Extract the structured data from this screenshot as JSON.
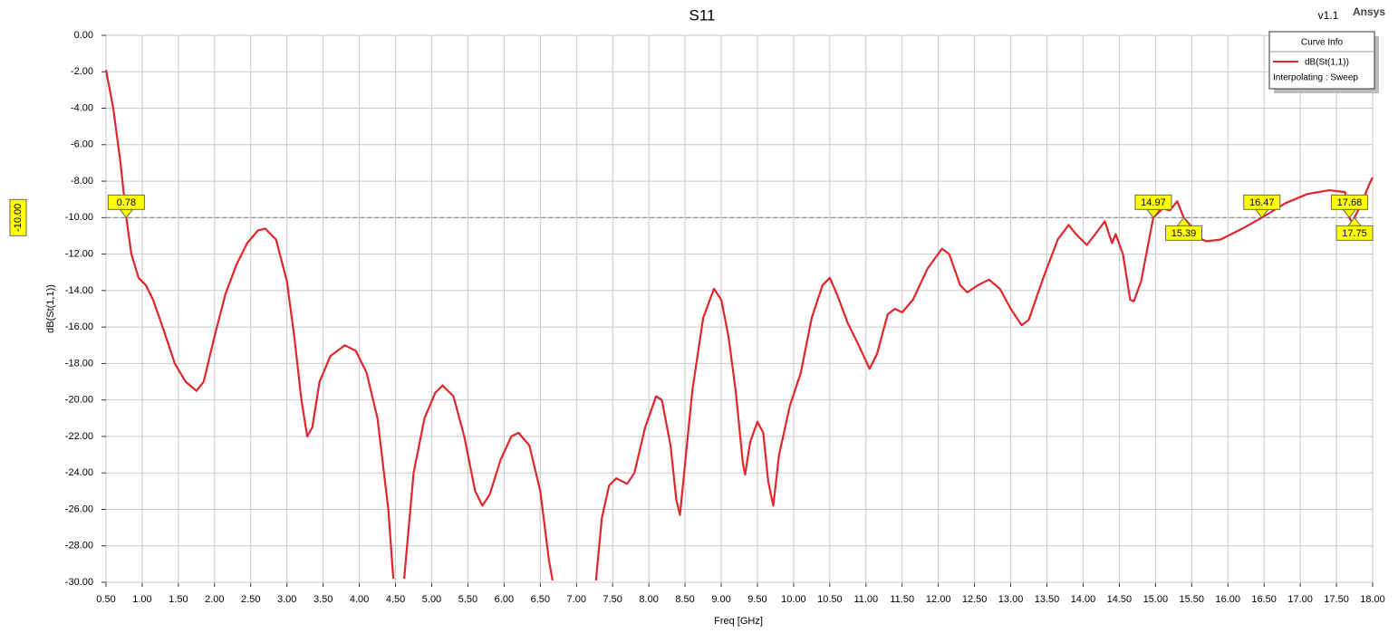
{
  "chart_data": {
    "type": "line",
    "title": "S11",
    "version": "v1.1",
    "brand": "Ansys",
    "xlabel": "Freq [GHz]",
    "ylabel": "dB(St(1,1))",
    "legend_title": "Curve Info",
    "legend_note": "Interpolating : Sweep",
    "legend": "top-right",
    "grid": true,
    "xlim": [
      0.5,
      18
    ],
    "ylim": [
      -30,
      0
    ],
    "xticks": [
      {
        "value": 0.5,
        "label": "0.50"
      },
      {
        "value": 1,
        "label": "1.00"
      },
      {
        "value": 1.5,
        "label": "1.50"
      },
      {
        "value": 2,
        "label": "2.00"
      },
      {
        "value": 2.5,
        "label": "2.50"
      },
      {
        "value": 3,
        "label": "3.00"
      },
      {
        "value": 3.5,
        "label": "3.50"
      },
      {
        "value": 4,
        "label": "4.00"
      },
      {
        "value": 4.5,
        "label": "4.50"
      },
      {
        "value": 5,
        "label": "5.00"
      },
      {
        "value": 5.5,
        "label": "5.50"
      },
      {
        "value": 6,
        "label": "6.00"
      },
      {
        "value": 6.5,
        "label": "6.50"
      },
      {
        "value": 7,
        "label": "7.00"
      },
      {
        "value": 7.5,
        "label": "7.50"
      },
      {
        "value": 8,
        "label": "8.00"
      },
      {
        "value": 8.5,
        "label": "8.50"
      },
      {
        "value": 9,
        "label": "9.00"
      },
      {
        "value": 9.5,
        "label": "9.50"
      },
      {
        "value": 10,
        "label": "10.00"
      },
      {
        "value": 10.5,
        "label": "10.50"
      },
      {
        "value": 11,
        "label": "11.00"
      },
      {
        "value": 11.5,
        "label": "11.50"
      },
      {
        "value": 12,
        "label": "12.00"
      },
      {
        "value": 12.5,
        "label": "12.50"
      },
      {
        "value": 13,
        "label": "13.00"
      },
      {
        "value": 13.5,
        "label": "13.50"
      },
      {
        "value": 14,
        "label": "14.00"
      },
      {
        "value": 14.5,
        "label": "14.50"
      },
      {
        "value": 15,
        "label": "15.00"
      },
      {
        "value": 15.5,
        "label": "15.50"
      },
      {
        "value": 16,
        "label": "16.00"
      },
      {
        "value": 16.5,
        "label": "16.50"
      },
      {
        "value": 17,
        "label": "17.00"
      },
      {
        "value": 17.5,
        "label": "17.50"
      },
      {
        "value": 18,
        "label": "18.00"
      }
    ],
    "yticks": [
      {
        "value": 0,
        "label": "0.00"
      },
      {
        "value": -2,
        "label": "-2.00"
      },
      {
        "value": -4,
        "label": "-4.00"
      },
      {
        "value": -6,
        "label": "-6.00"
      },
      {
        "value": -8,
        "label": "-8.00"
      },
      {
        "value": -10,
        "label": "-10.00"
      },
      {
        "value": -12,
        "label": "-12.00"
      },
      {
        "value": -14,
        "label": "-14.00"
      },
      {
        "value": -16,
        "label": "-16.00"
      },
      {
        "value": -18,
        "label": "-18.00"
      },
      {
        "value": -20,
        "label": "-20.00"
      },
      {
        "value": -22,
        "label": "-22.00"
      },
      {
        "value": -24,
        "label": "-24.00"
      },
      {
        "value": -26,
        "label": "-26.00"
      },
      {
        "value": -28,
        "label": "-28.00"
      },
      {
        "value": -30,
        "label": "-30.00"
      }
    ],
    "reference_line": {
      "value": -10,
      "label": "-10.00"
    },
    "markers": {
      "x": [
        0.78,
        14.97,
        15.39,
        16.47,
        17.68,
        17.75
      ],
      "y": [
        -10,
        -10,
        -10,
        -10,
        -10,
        -10
      ]
    },
    "x": [
      0.5,
      0.6,
      0.7,
      0.78,
      0.85,
      0.95,
      1.05,
      1.15,
      1.3,
      1.45,
      1.6,
      1.75,
      1.85,
      2.0,
      2.15,
      2.3,
      2.45,
      2.6,
      2.7,
      2.85,
      3.0,
      3.1,
      3.2,
      3.28,
      3.35,
      3.45,
      3.6,
      3.8,
      3.95,
      4.1,
      4.25,
      4.4,
      4.47,
      4.55,
      4.62,
      4.75,
      4.9,
      5.05,
      5.15,
      5.3,
      5.45,
      5.6,
      5.7,
      5.8,
      5.95,
      6.1,
      6.2,
      6.35,
      6.5,
      6.62,
      6.67,
      7.0,
      7.27,
      7.35,
      7.45,
      7.55,
      7.7,
      7.8,
      7.95,
      8.1,
      8.18,
      8.3,
      8.38,
      8.43,
      8.5,
      8.6,
      8.75,
      8.9,
      9.0,
      9.1,
      9.2,
      9.3,
      9.33,
      9.4,
      9.5,
      9.58,
      9.65,
      9.72,
      9.8,
      9.95,
      10.1,
      10.25,
      10.4,
      10.5,
      10.6,
      10.75,
      10.9,
      11.05,
      11.15,
      11.3,
      11.4,
      11.5,
      11.65,
      11.85,
      12.05,
      12.15,
      12.3,
      12.4,
      12.55,
      12.7,
      12.85,
      13.0,
      13.15,
      13.25,
      13.45,
      13.65,
      13.8,
      13.9,
      14.05,
      14.15,
      14.3,
      14.4,
      14.45,
      14.55,
      14.65,
      14.7,
      14.8,
      14.97,
      15.1,
      15.2,
      15.3,
      15.39,
      15.5,
      15.55,
      15.7,
      15.9,
      16.2,
      16.47,
      16.8,
      17.1,
      17.4,
      17.62,
      17.68,
      17.72,
      17.75,
      17.85,
      17.95,
      18.0
    ],
    "series": [
      {
        "name": "dB(St(1,1))",
        "color": "#e0262a",
        "values": [
          -1.9,
          -4,
          -7,
          -10,
          -12,
          -13.3,
          -13.7,
          -14.5,
          -16.2,
          -18,
          -19,
          -19.5,
          -19,
          -16.5,
          -14.2,
          -12.6,
          -11.4,
          -10.7,
          -10.6,
          -11.2,
          -13.5,
          -16.5,
          -20,
          -22,
          -21.5,
          -19,
          -17.6,
          -17,
          -17.3,
          -18.5,
          -21,
          -26,
          -29.8,
          null,
          -29.8,
          -24,
          -21,
          -19.6,
          -19.2,
          -19.8,
          -22,
          -25,
          -25.8,
          -25.2,
          -23.3,
          -22,
          -21.8,
          -22.5,
          -25,
          -28.8,
          -29.9,
          null,
          -29.9,
          -26.5,
          -24.7,
          -24.3,
          -24.6,
          -24,
          -21.5,
          -19.8,
          -20,
          -22.5,
          -25.5,
          -26.3,
          -23.5,
          -19.5,
          -15.5,
          -13.9,
          -14.5,
          -16.5,
          -19.5,
          -23.5,
          -24.1,
          -22.3,
          -21.2,
          -21.8,
          -24.5,
          -25.8,
          -23,
          -20.3,
          -18.5,
          -15.5,
          -13.7,
          -13.3,
          -14.2,
          -15.8,
          -17,
          -18.3,
          -17.5,
          -15.3,
          -15,
          -15.2,
          -14.5,
          -12.8,
          -11.7,
          -12,
          -13.7,
          -14.1,
          -13.7,
          -13.4,
          -13.9,
          -15,
          -15.9,
          -15.6,
          -13.3,
          -11.2,
          -10.4,
          -10.9,
          -11.5,
          -11,
          -10.2,
          -11.4,
          -10.9,
          -12,
          -14.5,
          -14.6,
          -13.5,
          -10,
          -9.5,
          -9.6,
          -9.1,
          -10,
          -10.5,
          -11,
          -11.3,
          -11.2,
          -10.6,
          -10,
          -9.2,
          -8.7,
          -8.5,
          -8.6,
          -10,
          -10.3,
          -10,
          -9.2,
          -8.2,
          -7.8
        ]
      }
    ]
  }
}
